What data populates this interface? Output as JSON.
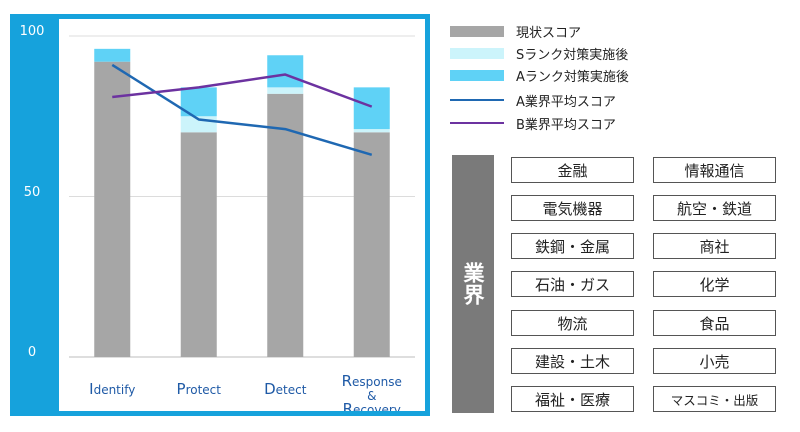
{
  "chart_data": {
    "type": "bar",
    "categories": [
      "Identify",
      "Protect",
      "Detect",
      "Response & Recovery"
    ],
    "category_lines": [
      [
        "Identify"
      ],
      [
        "Protect"
      ],
      [
        "Detect"
      ],
      [
        "Response",
        "&",
        "Recovery"
      ]
    ],
    "ylim": [
      0,
      100
    ],
    "yticks": [
      "0",
      "50",
      "100"
    ],
    "grid": true,
    "series": [
      {
        "name": "現状スコア",
        "kind": "bar",
        "color": "#a6a6a6",
        "values": [
          92,
          70,
          82,
          70
        ]
      },
      {
        "name": "Sランク対策実施後",
        "kind": "bar",
        "color": "#ccf4fb",
        "values": [
          92,
          75,
          84,
          71
        ]
      },
      {
        "name": "Aランク対策実施後",
        "kind": "bar",
        "color": "#5fd2f6",
        "values": [
          96,
          84,
          94,
          84
        ]
      },
      {
        "name": "A業界平均スコア",
        "kind": "line",
        "color": "#1f68b2",
        "values": [
          91,
          74,
          71,
          63
        ]
      },
      {
        "name": "B業界平均スコア",
        "kind": "line",
        "color": "#6c32a0",
        "values": [
          81,
          84,
          88,
          78
        ]
      }
    ]
  },
  "industry": {
    "title": "業界",
    "items": [
      "金融",
      "情報通信",
      "電気機器",
      "航空・鉄道",
      "鉄鋼・金属",
      "商社",
      "石油・ガス",
      "化学",
      "物流",
      "食品",
      "建設・土木",
      "小売",
      "福祉・医療",
      "マスコミ・出版"
    ]
  }
}
